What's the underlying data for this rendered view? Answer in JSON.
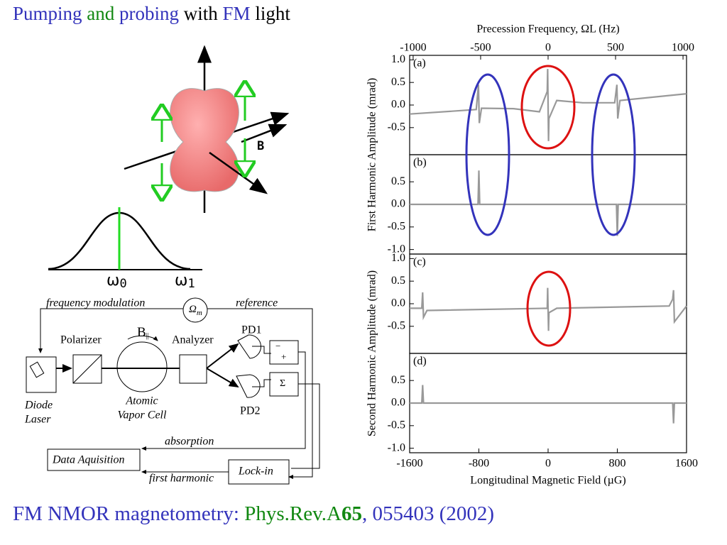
{
  "header": {
    "title": [
      "Pumping",
      "and",
      "probing",
      "with",
      "FM",
      "light"
    ]
  },
  "diagram": {
    "field": "B",
    "omega0": "ω",
    "omega0_sub": "0",
    "omega1": "ω",
    "omega1_sub": "1",
    "fm": "frequency modulation",
    "omega_m": "Ω",
    "omega_m_sub": "m",
    "reference": "reference",
    "polarizer": "Polarizer",
    "b_par": "B",
    "b_par_sub": "||",
    "analyzer": "Analyzer",
    "pd1": "PD1",
    "pd2": "PD2",
    "minus": "−",
    "plus": "+",
    "sigma": "Σ",
    "laser": [
      "Diode",
      "Laser"
    ],
    "cell": [
      "Atomic",
      "Vapor Cell"
    ],
    "absorption": "absorption",
    "daq": "Data Aquisition",
    "first_harmonic": "first harmonic",
    "lockin": "Lock-in"
  },
  "chart_data": [
    {
      "type": "line",
      "label": "(a)",
      "ylabel": "First Harmonic Amplitude (mrad)",
      "x2label": "Precession Frequency, ΩL (Hz)",
      "x2lim": [
        -1026,
        1026
      ],
      "x2ticks": [
        -1000,
        -500,
        0,
        500,
        1000
      ],
      "xlim": [
        -1600,
        1600
      ],
      "ylim": [
        -1.1,
        1.1
      ],
      "yticks": [
        {
          "value": 1,
          "label": "1.0"
        },
        0.5,
        {
          "value": 0,
          "label": "0.0"
        },
        -0.5
      ],
      "x": [
        -1600,
        -830,
        -805,
        -795,
        -770,
        -400,
        -100,
        -10,
        -5,
        5,
        10,
        100,
        400,
        770,
        795,
        805,
        830,
        1600
      ],
      "series": [
        {
          "color": "#999999",
          "values": [
            -0.2,
            -0.1,
            0.45,
            -0.4,
            -0.07,
            -0.08,
            -0.15,
            0.3,
            0.8,
            -0.8,
            -0.3,
            0.1,
            0.05,
            0.05,
            0.45,
            -0.3,
            0.1,
            0.25
          ]
        }
      ]
    },
    {
      "type": "line",
      "label": "(b)",
      "xlim": [
        -1600,
        1600
      ],
      "ylim": [
        -1.1,
        1.1
      ],
      "yticks": [
        0.5,
        {
          "value": 0,
          "label": "0.0"
        },
        -0.5,
        {
          "value": -1,
          "label": "-1.0"
        }
      ],
      "x": [
        -1600,
        -810,
        -800,
        -790,
        790,
        800,
        810,
        1600
      ],
      "series": [
        {
          "color": "#999999",
          "values": [
            0,
            0,
            0.75,
            0,
            0,
            -0.7,
            0,
            0
          ]
        }
      ]
    },
    {
      "type": "line",
      "label": "(c)",
      "ylabel": "Second Harmonic Amplitude (mrad)",
      "xlim": [
        -1600,
        1600
      ],
      "ylim": [
        -1.1,
        1.1
      ],
      "yticks": [
        {
          "value": 1,
          "label": "1.0"
        },
        0.5,
        {
          "value": 0,
          "label": "0.0"
        },
        -0.5
      ],
      "x": [
        -1600,
        -1460,
        -1450,
        -1440,
        -1400,
        -10,
        -5,
        5,
        10,
        100,
        1400,
        1440,
        1450,
        1460,
        1600
      ],
      "series": [
        {
          "color": "#999999",
          "values": [
            -0.1,
            -0.1,
            0.25,
            -0.3,
            -0.15,
            -0.1,
            0.35,
            -0.6,
            -0.2,
            -0.1,
            -0.05,
            0.1,
            0.3,
            -0.4,
            -0.05
          ]
        }
      ]
    },
    {
      "type": "line",
      "label": "(d)",
      "xlabel": "Longitudinal Magnetic Field (µG)",
      "xlim": [
        -1600,
        1600
      ],
      "ylim": [
        -1.1,
        1.1
      ],
      "yticks": [
        0.5,
        {
          "value": 0,
          "label": "0.0"
        },
        -0.5,
        {
          "value": -1,
          "label": "-1.0"
        }
      ],
      "xticks": [
        -1600,
        -800,
        0,
        800,
        1600
      ],
      "x": [
        -1600,
        -1460,
        -1450,
        -1440,
        1440,
        1450,
        1460,
        1600
      ],
      "series": [
        {
          "color": "#999999",
          "values": [
            0,
            0,
            0.4,
            0,
            0,
            -0.45,
            0,
            0
          ]
        }
      ]
    }
  ],
  "footer": [
    "FM NMOR magnetometry: ",
    "Phys.Rev.A",
    "65",
    ", 055403 (2002)"
  ]
}
